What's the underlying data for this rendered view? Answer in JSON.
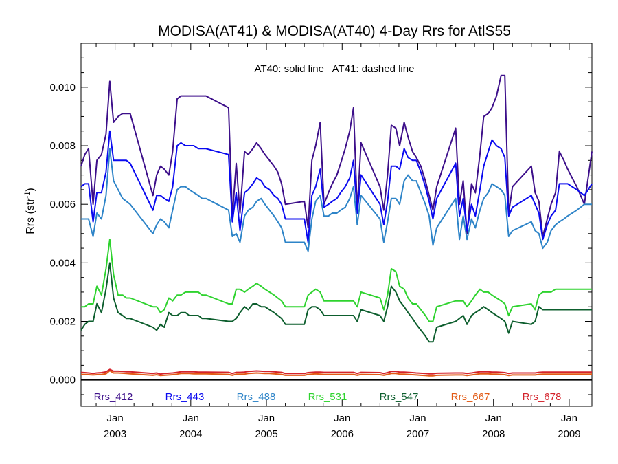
{
  "chart_data": {
    "type": "line",
    "title": "MODISA(AT41) & MODISA(AT40) 4-Day Rrs for AtlS55",
    "annotation": "AT40: solid line   AT41: dashed line",
    "ylabel": "Rrs (str",
    "ylabel_sup": "-1",
    "ylabel_close": ")",
    "ylim": [
      -0.0009,
      0.0115
    ],
    "yticks": [
      0.0,
      0.002,
      0.004,
      0.006,
      0.008,
      0.01
    ],
    "ytick_labels": [
      "0.000",
      "0.002",
      "0.004",
      "0.006",
      "0.008",
      "0.010"
    ],
    "xlim": [
      2002.55,
      2009.3
    ],
    "xticks": [
      {
        "x": 2003.0,
        "month": "Jan",
        "year": "2003"
      },
      {
        "x": 2004.0,
        "month": "Jan",
        "year": "2004"
      },
      {
        "x": 2005.0,
        "month": "Jan",
        "year": "2005"
      },
      {
        "x": 2006.0,
        "month": "Jan",
        "year": "2006"
      },
      {
        "x": 2007.0,
        "month": "Jan",
        "year": "2007"
      },
      {
        "x": 2008.0,
        "month": "Jan",
        "year": "2008"
      },
      {
        "x": 2009.0,
        "month": "Jan",
        "year": "2009"
      }
    ],
    "zero_line": true,
    "legend_position": "bottom",
    "x": [
      2002.55,
      2002.6,
      2002.65,
      2002.71,
      2002.76,
      2002.82,
      2002.88,
      2002.93,
      2002.98,
      2003.04,
      2003.1,
      2003.15,
      2003.2,
      2003.5,
      2003.55,
      2003.6,
      2003.65,
      2003.71,
      2003.76,
      2003.82,
      2003.87,
      2003.93,
      2003.98,
      2004.04,
      2004.1,
      2004.15,
      2004.2,
      2004.5,
      2004.55,
      2004.6,
      2004.65,
      2004.71,
      2004.76,
      2004.82,
      2004.87,
      2004.93,
      2004.98,
      2005.04,
      2005.1,
      2005.15,
      2005.2,
      2005.25,
      2005.5,
      2005.55,
      2005.6,
      2005.65,
      2005.71,
      2005.76,
      2005.82,
      2005.87,
      2005.93,
      2005.98,
      2006.04,
      2006.1,
      2006.15,
      2006.2,
      2006.25,
      2006.5,
      2006.55,
      2006.6,
      2006.65,
      2006.71,
      2006.76,
      2006.82,
      2006.87,
      2006.93,
      2006.98,
      2007.04,
      2007.1,
      2007.15,
      2007.2,
      2007.25,
      2007.5,
      2007.55,
      2007.6,
      2007.65,
      2007.71,
      2007.76,
      2007.82,
      2007.87,
      2007.93,
      2007.98,
      2008.04,
      2008.1,
      2008.15,
      2008.2,
      2008.25,
      2008.5,
      2008.55,
      2008.6,
      2008.65,
      2008.71,
      2008.76,
      2008.82,
      2008.87,
      2008.93,
      2008.98,
      2009.04,
      2009.1,
      2009.15,
      2009.2,
      2009.3
    ],
    "series": [
      {
        "name": "Rrs_412",
        "color": "#3d0f8a",
        "values": [
          0.0073,
          0.0077,
          0.0079,
          0.006,
          0.0075,
          0.0077,
          0.0084,
          0.0102,
          0.0088,
          0.009,
          0.0091,
          0.0091,
          0.0091,
          0.0063,
          0.007,
          0.0073,
          0.0072,
          0.007,
          0.0078,
          0.0096,
          0.0097,
          0.0097,
          0.0097,
          0.0097,
          0.0097,
          0.0097,
          0.0097,
          0.0093,
          0.0056,
          0.0074,
          0.0057,
          0.0078,
          0.0077,
          0.0079,
          0.0081,
          0.0079,
          0.0077,
          0.0075,
          0.0073,
          0.0071,
          0.0067,
          0.006,
          0.0061,
          0.0052,
          0.0075,
          0.008,
          0.0088,
          0.006,
          0.0064,
          0.0067,
          0.007,
          0.0074,
          0.0079,
          0.0085,
          0.0093,
          0.0058,
          0.0081,
          0.0066,
          0.0058,
          0.007,
          0.0087,
          0.0086,
          0.008,
          0.0088,
          0.0083,
          0.0078,
          0.0076,
          0.0073,
          0.0068,
          0.0063,
          0.0058,
          0.0066,
          0.0086,
          0.006,
          0.0068,
          0.005,
          0.0067,
          0.0064,
          0.0077,
          0.009,
          0.0091,
          0.0093,
          0.0097,
          0.0104,
          0.0104,
          0.0057,
          0.0066,
          0.0073,
          0.0064,
          0.0061,
          0.0049,
          0.0055,
          0.006,
          0.0064,
          0.0078,
          0.0075,
          0.0072,
          0.0069,
          0.0066,
          0.0063,
          0.006,
          0.0078
        ]
      },
      {
        "name": "Rrs_443",
        "color": "#0a0af0",
        "values": [
          0.0066,
          0.0067,
          0.0067,
          0.0054,
          0.0064,
          0.0064,
          0.0071,
          0.0085,
          0.0075,
          0.0075,
          0.0075,
          0.0075,
          0.0074,
          0.0058,
          0.0063,
          0.0063,
          0.0062,
          0.0061,
          0.0066,
          0.008,
          0.0081,
          0.008,
          0.008,
          0.008,
          0.0079,
          0.0079,
          0.0079,
          0.0077,
          0.0054,
          0.0064,
          0.0051,
          0.0064,
          0.0065,
          0.0067,
          0.0069,
          0.0068,
          0.0066,
          0.0065,
          0.0063,
          0.0062,
          0.006,
          0.0055,
          0.0055,
          0.0047,
          0.0063,
          0.0066,
          0.0072,
          0.0059,
          0.006,
          0.0061,
          0.0062,
          0.0064,
          0.0066,
          0.0069,
          0.0075,
          0.0057,
          0.007,
          0.006,
          0.0053,
          0.0061,
          0.0073,
          0.0073,
          0.0072,
          0.0079,
          0.0076,
          0.0075,
          0.0075,
          0.0071,
          0.0066,
          0.0061,
          0.0055,
          0.0062,
          0.0074,
          0.0056,
          0.0062,
          0.0051,
          0.006,
          0.0056,
          0.0065,
          0.0073,
          0.0078,
          0.0082,
          0.008,
          0.0079,
          0.0076,
          0.0056,
          0.0059,
          0.0063,
          0.006,
          0.0057,
          0.0048,
          0.0053,
          0.0056,
          0.0058,
          0.0067,
          0.0067,
          0.0067,
          0.0066,
          0.0065,
          0.0064,
          0.0063,
          0.0067
        ]
      },
      {
        "name": "Rrs_488",
        "color": "#2e84c8",
        "values": [
          0.0055,
          0.0055,
          0.0055,
          0.0049,
          0.0057,
          0.0055,
          0.0063,
          0.0079,
          0.0068,
          0.0065,
          0.0062,
          0.0061,
          0.006,
          0.005,
          0.0053,
          0.0055,
          0.0054,
          0.0052,
          0.0058,
          0.0065,
          0.0066,
          0.0066,
          0.0065,
          0.0064,
          0.0063,
          0.0062,
          0.0062,
          0.0058,
          0.0049,
          0.005,
          0.0047,
          0.0056,
          0.0058,
          0.0059,
          0.0061,
          0.0062,
          0.006,
          0.0058,
          0.0056,
          0.0054,
          0.0052,
          0.0047,
          0.0047,
          0.0044,
          0.0055,
          0.0061,
          0.0063,
          0.0056,
          0.0056,
          0.0057,
          0.0057,
          0.0058,
          0.0059,
          0.0062,
          0.0066,
          0.0053,
          0.0063,
          0.0055,
          0.0047,
          0.0054,
          0.0062,
          0.0062,
          0.006,
          0.0068,
          0.007,
          0.0068,
          0.0068,
          0.0064,
          0.006,
          0.0056,
          0.0046,
          0.0052,
          0.0062,
          0.0048,
          0.0056,
          0.0048,
          0.0055,
          0.0052,
          0.0058,
          0.0062,
          0.0064,
          0.0067,
          0.0066,
          0.0065,
          0.0063,
          0.0049,
          0.0051,
          0.0054,
          0.0051,
          0.005,
          0.0045,
          0.0047,
          0.0051,
          0.0053,
          0.0054,
          0.0055,
          0.0056,
          0.0057,
          0.0058,
          0.0059,
          0.006,
          0.006
        ]
      },
      {
        "name": "Rrs_531",
        "color": "#2fd32f",
        "values": [
          0.0025,
          0.0025,
          0.0026,
          0.0026,
          0.0032,
          0.0029,
          0.0038,
          0.0048,
          0.0036,
          0.0029,
          0.0029,
          0.0028,
          0.0028,
          0.0025,
          0.0025,
          0.0023,
          0.0024,
          0.0028,
          0.0027,
          0.0029,
          0.0029,
          0.003,
          0.003,
          0.003,
          0.003,
          0.0029,
          0.0029,
          0.0026,
          0.0026,
          0.0031,
          0.0031,
          0.003,
          0.0031,
          0.0032,
          0.0033,
          0.0032,
          0.0031,
          0.003,
          0.0029,
          0.0028,
          0.0027,
          0.0025,
          0.0025,
          0.0029,
          0.003,
          0.0031,
          0.003,
          0.0027,
          0.0027,
          0.0027,
          0.0027,
          0.0027,
          0.0027,
          0.0027,
          0.0027,
          0.0025,
          0.003,
          0.0028,
          0.0024,
          0.0029,
          0.0038,
          0.0037,
          0.0032,
          0.0031,
          0.0028,
          0.0026,
          0.0026,
          0.0024,
          0.0022,
          0.002,
          0.002,
          0.0025,
          0.0027,
          0.0027,
          0.0027,
          0.0025,
          0.0027,
          0.0029,
          0.0031,
          0.003,
          0.003,
          0.0029,
          0.0028,
          0.0027,
          0.0026,
          0.0022,
          0.0025,
          0.0026,
          0.0024,
          0.0029,
          0.003,
          0.003,
          0.003,
          0.0031,
          0.0031,
          0.0031,
          0.0031,
          0.0031,
          0.0031,
          0.0031,
          0.0031,
          0.0031
        ]
      },
      {
        "name": "Rrs_547",
        "color": "#0d5e2e",
        "values": [
          0.0017,
          0.0019,
          0.002,
          0.002,
          0.0026,
          0.0023,
          0.0031,
          0.004,
          0.0028,
          0.0023,
          0.0022,
          0.0021,
          0.0021,
          0.0018,
          0.0017,
          0.0019,
          0.0018,
          0.0023,
          0.0022,
          0.0022,
          0.0023,
          0.0023,
          0.0022,
          0.0022,
          0.0022,
          0.0021,
          0.0021,
          0.002,
          0.002,
          0.0021,
          0.0023,
          0.0025,
          0.0024,
          0.0026,
          0.0026,
          0.0025,
          0.0025,
          0.0024,
          0.0023,
          0.0022,
          0.0021,
          0.0019,
          0.0019,
          0.0024,
          0.0025,
          0.0025,
          0.0024,
          0.0022,
          0.0022,
          0.0022,
          0.0022,
          0.0022,
          0.0022,
          0.0022,
          0.0022,
          0.002,
          0.0024,
          0.0022,
          0.002,
          0.0025,
          0.0032,
          0.003,
          0.0027,
          0.0025,
          0.0023,
          0.0021,
          0.0019,
          0.0017,
          0.0015,
          0.0013,
          0.0013,
          0.0018,
          0.002,
          0.0021,
          0.0022,
          0.0019,
          0.0022,
          0.0023,
          0.0024,
          0.0025,
          0.0024,
          0.0023,
          0.0022,
          0.0021,
          0.002,
          0.0016,
          0.002,
          0.0019,
          0.002,
          0.0025,
          0.0024,
          0.0024,
          0.0024,
          0.0024,
          0.0024,
          0.0024,
          0.0024,
          0.0024,
          0.0024,
          0.0024,
          0.0024,
          0.0024
        ]
      },
      {
        "name": "Rrs_667",
        "color": "#e25a14",
        "values": [
          0.00019,
          0.00019,
          0.00018,
          0.00017,
          0.00018,
          0.00019,
          0.00021,
          0.00032,
          0.00024,
          0.00024,
          0.00023,
          0.00022,
          0.00021,
          0.00016,
          0.00018,
          0.00015,
          0.00016,
          0.00017,
          0.00018,
          0.0002,
          0.00022,
          0.00022,
          0.00022,
          0.00021,
          0.00021,
          0.00021,
          0.00021,
          0.00019,
          0.00016,
          0.0002,
          0.0002,
          0.0002,
          0.00022,
          0.00023,
          0.00024,
          0.00023,
          0.00022,
          0.00022,
          0.00021,
          0.0002,
          0.00019,
          0.00016,
          0.00016,
          0.00019,
          0.0002,
          0.00021,
          0.0002,
          0.00019,
          0.00019,
          0.00019,
          0.00019,
          0.00019,
          0.00019,
          0.00019,
          0.00019,
          0.00016,
          0.00019,
          0.00018,
          0.00016,
          0.00019,
          0.00022,
          0.00022,
          0.0002,
          0.0002,
          0.00019,
          0.00018,
          0.00017,
          0.00016,
          0.00015,
          0.00014,
          0.00014,
          0.00016,
          0.00017,
          0.00017,
          0.00017,
          0.00015,
          0.00017,
          0.00019,
          0.00021,
          0.00021,
          0.00021,
          0.0002,
          0.0002,
          0.00019,
          0.00018,
          0.00015,
          0.00017,
          0.00017,
          0.00017,
          0.00019,
          0.0002,
          0.0002,
          0.0002,
          0.0002,
          0.0002,
          0.0002,
          0.0002,
          0.0002,
          0.0002,
          0.0002,
          0.0002,
          0.0002
        ]
      },
      {
        "name": "Rrs_678",
        "color": "#d4232c",
        "values": [
          0.00026,
          0.00025,
          0.00024,
          0.00022,
          0.00024,
          0.00025,
          0.00028,
          0.00036,
          0.0003,
          0.0003,
          0.00029,
          0.00028,
          0.00028,
          0.00022,
          0.00024,
          0.0002,
          0.00022,
          0.00023,
          0.00024,
          0.00026,
          0.00028,
          0.00028,
          0.00028,
          0.00028,
          0.00027,
          0.00027,
          0.00027,
          0.00026,
          0.00022,
          0.00026,
          0.00026,
          0.00027,
          0.00029,
          0.0003,
          0.00031,
          0.0003,
          0.00029,
          0.00029,
          0.00028,
          0.00027,
          0.00026,
          0.00022,
          0.00022,
          0.00025,
          0.00026,
          0.00027,
          0.00027,
          0.00026,
          0.00026,
          0.00026,
          0.00026,
          0.00026,
          0.00026,
          0.00026,
          0.00026,
          0.00022,
          0.00026,
          0.00025,
          0.00022,
          0.00025,
          0.00029,
          0.00029,
          0.00027,
          0.00027,
          0.00026,
          0.00025,
          0.00024,
          0.00023,
          0.00022,
          0.00021,
          0.00021,
          0.00023,
          0.00024,
          0.00024,
          0.00024,
          0.00022,
          0.00024,
          0.00026,
          0.00028,
          0.00028,
          0.00028,
          0.00027,
          0.00027,
          0.00026,
          0.00025,
          0.00022,
          0.00024,
          0.00024,
          0.00024,
          0.00026,
          0.00027,
          0.00027,
          0.00027,
          0.00027,
          0.00027,
          0.00027,
          0.00027,
          0.00027,
          0.00027,
          0.00027,
          0.00027,
          0.00027
        ]
      }
    ]
  }
}
